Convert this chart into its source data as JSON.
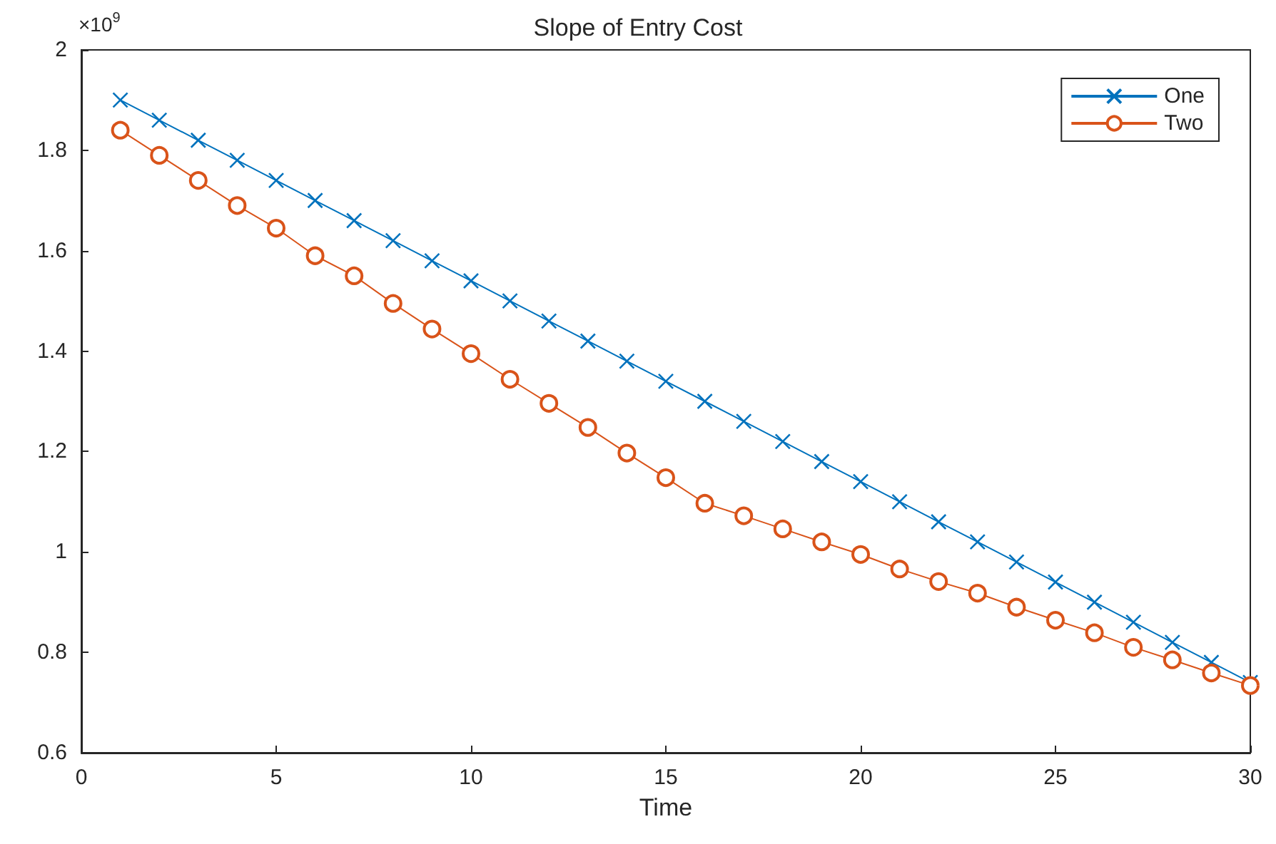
{
  "chart_data": {
    "type": "line",
    "title": "Slope of Entry Cost",
    "xlabel": "Time",
    "annotations": [
      "×10$^{9}$"
    ],
    "x": [
      1,
      2,
      3,
      4,
      5,
      6,
      7,
      8,
      9,
      10,
      11,
      12,
      13,
      14,
      15,
      16,
      17,
      18,
      19,
      20,
      21,
      22,
      23,
      24,
      25,
      26,
      27,
      28,
      29,
      30
    ],
    "xlim": [
      0,
      30
    ],
    "xticks": [
      0,
      5,
      10,
      15,
      20,
      25,
      30
    ],
    "ylim": [
      0.6,
      2
    ],
    "yticks": [
      0.6,
      0.8,
      1,
      1.2,
      1.4,
      1.6,
      1.8,
      2
    ],
    "grid": false,
    "legend": "top right",
    "line_style": "solid",
    "series": [
      {
        "name": "One",
        "color": "#0072bd",
        "marker": "cross",
        "values": [
          1.9,
          1.86,
          1.82,
          1.78,
          1.74,
          1.7,
          1.66,
          1.62,
          1.58,
          1.54,
          1.5,
          1.46,
          1.42,
          1.38,
          1.34,
          1.3,
          1.26,
          1.22,
          1.18,
          1.14,
          1.1,
          1.06,
          1.02,
          0.98,
          0.94,
          0.9,
          0.86,
          0.82,
          0.78,
          0.74
        ]
      },
      {
        "name": "Two",
        "color": "#d95319",
        "marker": "circle",
        "values": [
          1.84,
          1.79,
          1.74,
          1.69,
          1.645,
          1.59,
          1.55,
          1.495,
          1.444,
          1.395,
          1.344,
          1.296,
          1.248,
          1.197,
          1.148,
          1.097,
          1.072,
          1.046,
          1.02,
          0.995,
          0.966,
          0.941,
          0.918,
          0.89,
          0.864,
          0.839,
          0.81,
          0.785,
          0.759,
          0.734
        ]
      }
    ]
  }
}
